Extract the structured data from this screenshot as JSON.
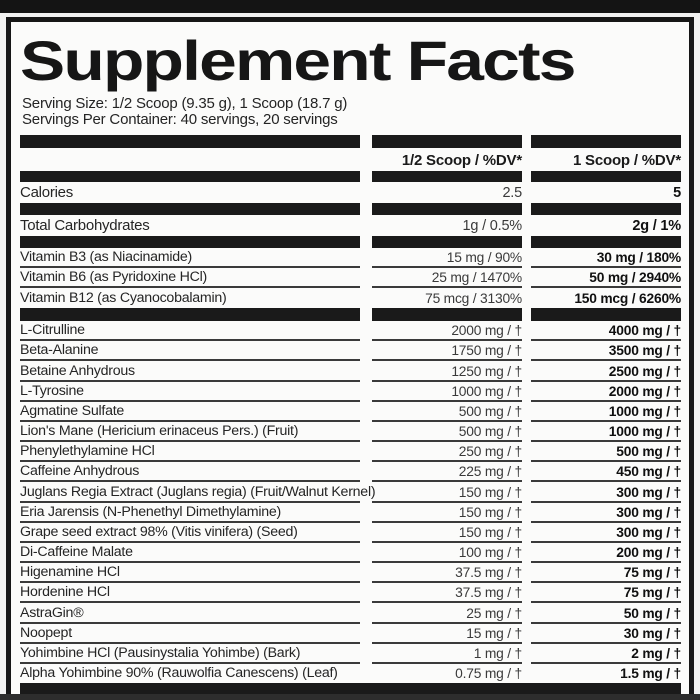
{
  "colors": {
    "ink": "#1b1b1b",
    "paper": "#fbfbfa",
    "bar": "#1a1a1a"
  },
  "label": {
    "title": "Supplement Facts",
    "serving_size": "Serving Size: 1/2 Scoop (9.35 g), 1 Scoop (18.7 g)",
    "servings_per_container": "Servings Per Container: 40 servings, 20 servings",
    "columns": {
      "half_scoop": "1/2 Scoop / %DV*",
      "one_scoop": "1 Scoop / %DV*"
    },
    "macro_rows": [
      {
        "name": "Calories",
        "half": "2.5",
        "full": "5"
      },
      {
        "name": "Total Carbohydrates",
        "half": "1g / 0.5%",
        "full": "2g / 1%"
      }
    ],
    "vitamin_rows": [
      {
        "name": "Vitamin B3 (as Niacinamide)",
        "half": "15 mg / 90%",
        "full": "30 mg / 180%"
      },
      {
        "name": "Vitamin B6 (as Pyridoxine HCl)",
        "half": "25 mg / 1470%",
        "full": "50 mg / 2940%"
      },
      {
        "name": "Vitamin B12 (as Cyanocobalamin)",
        "half": "75 mcg / 3130%",
        "full": "150 mcg / 6260%"
      }
    ],
    "ingredient_rows": [
      {
        "name": "L-Citrulline",
        "half": "2000 mg / †",
        "full": "4000 mg / †"
      },
      {
        "name": "Beta-Alanine",
        "half": "1750 mg / †",
        "full": "3500 mg / †"
      },
      {
        "name": "Betaine Anhydrous",
        "half": "1250 mg / †",
        "full": "2500 mg / †"
      },
      {
        "name": "L-Tyrosine",
        "half": "1000 mg / †",
        "full": "2000 mg / †"
      },
      {
        "name": "Agmatine Sulfate",
        "half": "500 mg / †",
        "full": "1000 mg / †"
      },
      {
        "name": "Lion's Mane (Hericium erinaceus Pers.) (Fruit)",
        "half": "500 mg / †",
        "full": "1000 mg / †"
      },
      {
        "name": "Phenylethylamine HCl",
        "half": "250 mg / †",
        "full": "500 mg / †"
      },
      {
        "name": "Caffeine Anhydrous",
        "half": "225 mg / †",
        "full": "450 mg / †"
      },
      {
        "name": "Juglans Regia Extract (Juglans regia) (Fruit/Walnut Kernel)",
        "half": "150 mg / †",
        "full": "300 mg / †"
      },
      {
        "name": "Eria Jarensis (N-Phenethyl Dimethylamine)",
        "half": "150 mg / †",
        "full": "300 mg / †"
      },
      {
        "name": "Grape seed extract 98% (Vitis vinifera) (Seed)",
        "half": "150 mg / †",
        "full": "300 mg / †"
      },
      {
        "name": "Di-Caffeine Malate",
        "half": "100 mg / †",
        "full": "200 mg / †"
      },
      {
        "name": "Higenamine HCl",
        "half": "37.5 mg / †",
        "full": "75 mg / †"
      },
      {
        "name": "Hordenine HCl",
        "half": "37.5 mg / †",
        "full": "75 mg / †"
      },
      {
        "name": "AstraGin®",
        "half": "25 mg / †",
        "full": "50 mg / †"
      },
      {
        "name": "Noopept",
        "half": "15 mg / †",
        "full": "30 mg / †"
      },
      {
        "name": "Yohimbine HCl (Pausinystalia Yohimbe) (Bark)",
        "half": "1 mg / †",
        "full": "2 mg / †"
      },
      {
        "name": "Alpha Yohimbine 90% (Rauwolfia Canescens) (Leaf)",
        "half": "0.75 mg / †",
        "full": "1.5 mg / †"
      }
    ]
  }
}
